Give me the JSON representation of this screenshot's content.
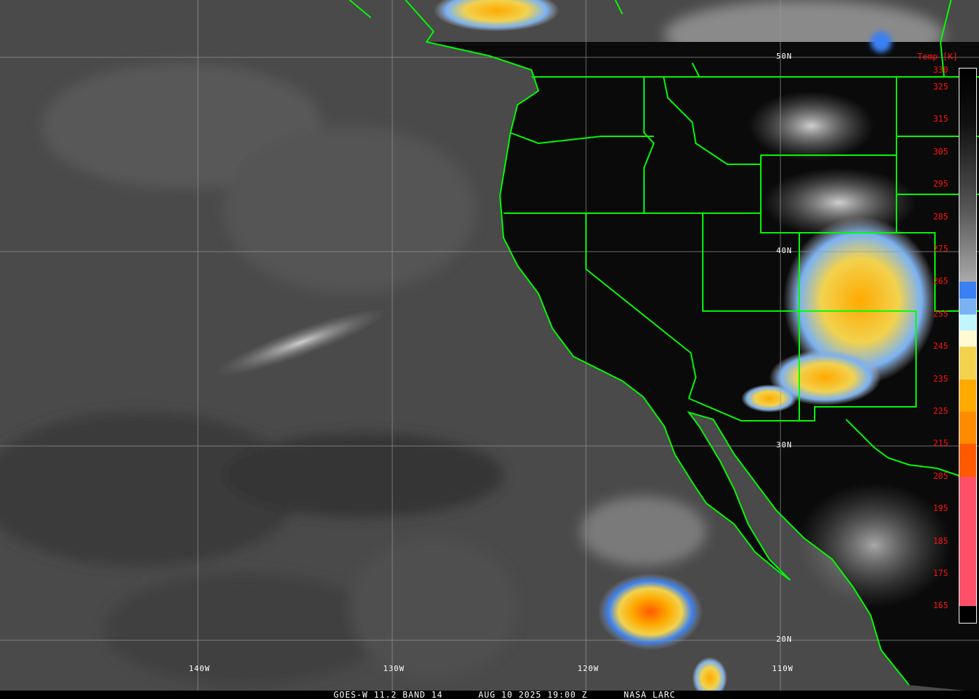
{
  "caption": {
    "satellite_band": "GOES-W 11.2 BAND 14",
    "datetime": "AUG 10 2025 19:00 Z",
    "credit": "NASA LARC"
  },
  "grid": {
    "latitude_labels": [
      "50N",
      "40N",
      "30N",
      "20N"
    ],
    "longitude_labels": [
      "140W",
      "130W",
      "120W",
      "110W"
    ]
  },
  "colorbar": {
    "title": "Temp [K]",
    "ticks": [
      "330",
      "325",
      "315",
      "305",
      "295",
      "285",
      "275",
      "265",
      "255",
      "245",
      "235",
      "225",
      "215",
      "205",
      "195",
      "185",
      "175",
      "165"
    ],
    "segments": [
      {
        "from_k": 330,
        "to_k": 265,
        "color": "gradient black-to-gray"
      },
      {
        "from_k": 265,
        "to_k": 260,
        "color": "#3a80f2"
      },
      {
        "from_k": 260,
        "to_k": 255,
        "color": "#7ab2f4"
      },
      {
        "from_k": 255,
        "to_k": 250,
        "color": "#c2f6ff"
      },
      {
        "from_k": 250,
        "to_k": 245,
        "color": "#fffad2"
      },
      {
        "from_k": 245,
        "to_k": 235,
        "color": "#f2d24e"
      },
      {
        "from_k": 235,
        "to_k": 225,
        "color": "#ffaa00"
      },
      {
        "from_k": 225,
        "to_k": 215,
        "color": "#ff8c00"
      },
      {
        "from_k": 215,
        "to_k": 205,
        "color": "#ff5a00"
      },
      {
        "from_k": 205,
        "to_k": 165,
        "color": "#ff506a"
      },
      {
        "from_k": 165,
        "to_k": 160,
        "color": "#000000"
      }
    ]
  },
  "colors": {
    "borders": "#00ff00",
    "grid": "#9a9a9a",
    "tick_labels": "#ff1010"
  }
}
